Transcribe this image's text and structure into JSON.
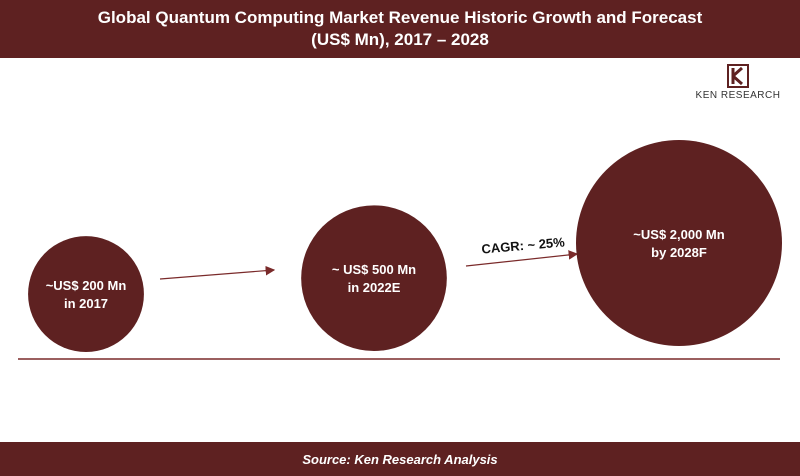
{
  "chart_data": {
    "type": "bubble",
    "title_line1": "Global Quantum Computing Market Revenue Historic Growth and Forecast",
    "title_line2": "(US$ Mn), 2017 – 2028",
    "points": [
      {
        "year": "2017",
        "value": 200,
        "label_line1": "~US$ 200 Mn",
        "label_line2": "in 2017"
      },
      {
        "year": "2022E",
        "value": 500,
        "label_line1": "~ US$ 500 Mn",
        "label_line2": "in 2022E"
      },
      {
        "year": "2028F",
        "value": 2000,
        "label_line1": "~US$ 2,000 Mn",
        "label_line2": "by 2028F"
      }
    ],
    "annotation": "CAGR: ~ 25%",
    "source": "Source: Ken Research Analysis"
  },
  "brand": {
    "name": "KEN RESEARCH",
    "color": "#5e2121",
    "icon": "ken-research-logo-icon"
  }
}
